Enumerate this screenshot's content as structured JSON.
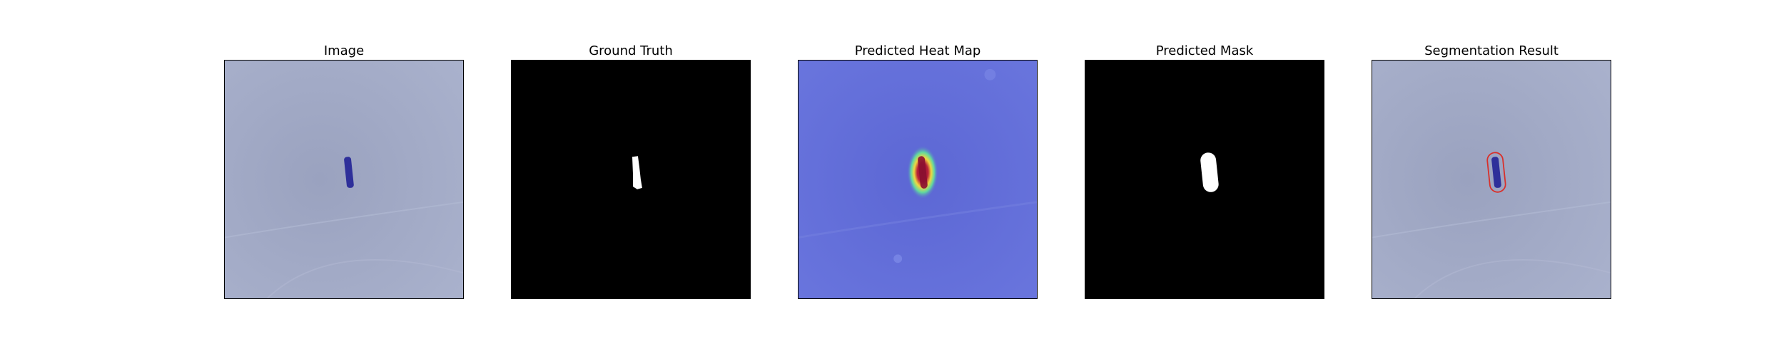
{
  "panels": [
    {
      "id": "image",
      "title": "Image"
    },
    {
      "id": "ground-truth",
      "title": "Ground Truth"
    },
    {
      "id": "heat-map",
      "title": "Predicted Heat Map"
    },
    {
      "id": "predicted-mask",
      "title": "Predicted Mask"
    },
    {
      "id": "segmentation",
      "title": "Segmentation Result"
    }
  ],
  "colors": {
    "background_tint": "#a3abc8",
    "object": "#2e2f9a",
    "mask": "#ffffff",
    "mask_background": "#000000",
    "heatmap_base": "#5a63d6",
    "contour": "#d9302a"
  }
}
